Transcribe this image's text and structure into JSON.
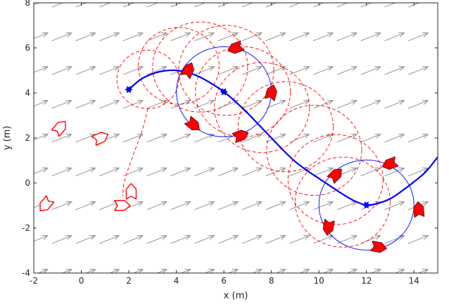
{
  "chart_data": {
    "type": "line",
    "title": "",
    "xlabel": "x (m)",
    "ylabel": "y (m)",
    "xlim": [
      -2,
      15
    ],
    "ylim": [
      -4,
      8
    ],
    "xticks": [
      -2,
      0,
      2,
      4,
      6,
      8,
      10,
      12,
      14
    ],
    "yticks": [
      -4,
      -2,
      0,
      2,
      4,
      6,
      8
    ],
    "grid": false,
    "legend": "none",
    "colors": {
      "path": "#0000ff",
      "circle": "#0000ff",
      "dashed": "#ff0000",
      "vehicle_fill": "#ff0000",
      "vehicle_outline": "#ff0000",
      "field_arrow": "#808080",
      "axis": "#262626"
    },
    "series": [
      {
        "type": "line",
        "style": "solid",
        "points": [
          [
            2.0,
            4.15
          ],
          [
            2.5,
            4.6
          ],
          [
            3.0,
            4.85
          ],
          [
            3.5,
            4.98
          ],
          [
            4.0,
            5.0
          ],
          [
            4.5,
            4.9
          ],
          [
            5.0,
            4.7
          ],
          [
            5.5,
            4.4
          ],
          [
            6.0,
            4.05
          ],
          [
            6.5,
            3.6
          ],
          [
            7.0,
            3.1
          ],
          [
            7.5,
            2.55
          ],
          [
            8.0,
            2.0
          ],
          [
            8.5,
            1.45
          ],
          [
            9.0,
            0.95
          ],
          [
            9.5,
            0.55
          ],
          [
            10.0,
            0.2
          ],
          [
            10.5,
            -0.15
          ],
          [
            11.0,
            -0.5
          ],
          [
            11.5,
            -0.8
          ],
          [
            12.0,
            -0.98
          ],
          [
            12.5,
            -0.9
          ],
          [
            13.0,
            -0.7
          ],
          [
            13.5,
            -0.35
          ],
          [
            14.0,
            0.05
          ],
          [
            14.5,
            0.5
          ],
          [
            15.0,
            1.15
          ]
        ]
      },
      {
        "type": "scatter",
        "marker": "star",
        "points": [
          [
            2.0,
            4.15
          ],
          [
            6.0,
            4.05
          ],
          [
            12.0,
            -0.98
          ]
        ]
      },
      {
        "type": "circle",
        "style": "solid",
        "center": [
          6.0,
          4.05
        ],
        "radius": 2.0
      },
      {
        "type": "circle",
        "style": "solid",
        "center": [
          12.0,
          -0.98
        ],
        "radius": 2.0
      },
      {
        "type": "circle",
        "style": "dashed",
        "circles": [
          [
            2.8,
            4.6,
            1.3
          ],
          [
            4.1,
            5.2,
            1.7
          ],
          [
            5.0,
            5.15,
            2.0
          ],
          [
            6.1,
            5.0,
            2.0
          ],
          [
            6.8,
            4.05,
            2.0
          ],
          [
            7.6,
            3.35,
            2.0
          ],
          [
            8.6,
            2.5,
            2.0
          ],
          [
            9.8,
            1.45,
            2.0
          ],
          [
            10.7,
            0.15,
            2.0
          ],
          [
            11.0,
            -0.85,
            2.0
          ]
        ]
      },
      {
        "type": "line",
        "style": "dashed",
        "points": [
          [
            2.8,
            3.3
          ],
          [
            2.55,
            2.3
          ],
          [
            2.1,
            1.0
          ],
          [
            1.8,
            0.0
          ],
          [
            1.75,
            -0.6
          ]
        ]
      }
    ],
    "vehicles": [
      {
        "x": 4.5,
        "y": 5.0,
        "heading": 65,
        "filled": true
      },
      {
        "x": 6.5,
        "y": 6.0,
        "heading": 200,
        "filled": true
      },
      {
        "x": 8.0,
        "y": 4.0,
        "heading": 75,
        "filled": true
      },
      {
        "x": 4.7,
        "y": 2.6,
        "heading": -40,
        "filled": true
      },
      {
        "x": 6.7,
        "y": 2.1,
        "heading": 20,
        "filled": true
      },
      {
        "x": 10.7,
        "y": 0.35,
        "heading": 45,
        "filled": true
      },
      {
        "x": 13.0,
        "y": 0.85,
        "heading": 200,
        "filled": true
      },
      {
        "x": 14.2,
        "y": -1.2,
        "heading": 95,
        "filled": true
      },
      {
        "x": 10.4,
        "y": -1.95,
        "heading": 260,
        "filled": true
      },
      {
        "x": 12.5,
        "y": -2.85,
        "heading": -10,
        "filled": true
      },
      {
        "x": -0.9,
        "y": 2.45,
        "heading": 50,
        "filled": false
      },
      {
        "x": 0.8,
        "y": 2.0,
        "heading": 25,
        "filled": false
      },
      {
        "x": -1.5,
        "y": -0.95,
        "heading": 230,
        "filled": false
      },
      {
        "x": 2.1,
        "y": -0.4,
        "heading": 90,
        "filled": false
      },
      {
        "x": 1.7,
        "y": -1.0,
        "heading": 0,
        "filled": false
      }
    ],
    "vector_field": {
      "x_start": -2,
      "x_step": 1,
      "y_start": -4,
      "y_step": 1.5,
      "cols": 17,
      "rows": 9,
      "u": 1.0,
      "v": 0.4
    }
  }
}
